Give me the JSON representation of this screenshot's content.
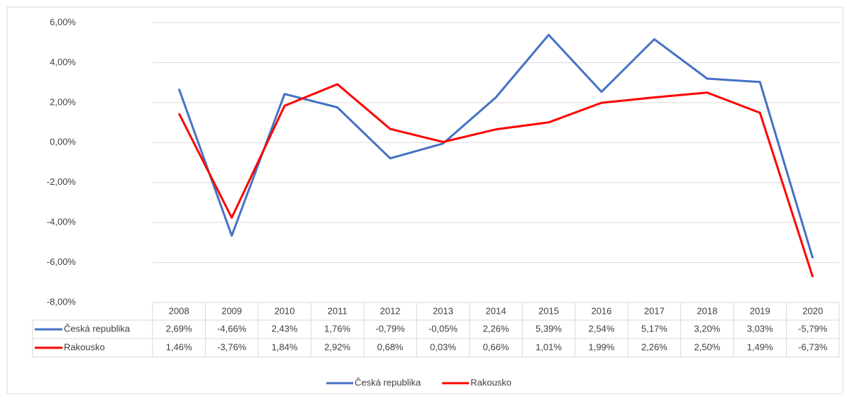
{
  "chart_data": {
    "type": "line",
    "categories": [
      "2008",
      "2009",
      "2010",
      "2011",
      "2012",
      "2013",
      "2014",
      "2015",
      "2016",
      "2017",
      "2018",
      "2019",
      "2020"
    ],
    "series": [
      {
        "name": "Česká republika",
        "color": "#4472c4",
        "values": [
          2.69,
          -4.66,
          2.43,
          1.76,
          -0.79,
          -0.05,
          2.26,
          5.39,
          2.54,
          5.17,
          3.2,
          3.03,
          -5.79
        ],
        "value_labels": [
          "2,69%",
          "-4,66%",
          "2,43%",
          "1,76%",
          "-0,79%",
          "-0,05%",
          "2,26%",
          "5,39%",
          "2,54%",
          "5,17%",
          "3,20%",
          "3,03%",
          "-5,79%"
        ]
      },
      {
        "name": "Rakousko",
        "color": "#ff0000",
        "values": [
          1.46,
          -3.76,
          1.84,
          2.92,
          0.68,
          0.03,
          0.66,
          1.01,
          1.99,
          2.26,
          2.5,
          1.49,
          -6.73
        ],
        "value_labels": [
          "1,46%",
          "-3,76%",
          "1,84%",
          "2,92%",
          "0,68%",
          "0,03%",
          "0,66%",
          "1,01%",
          "1,99%",
          "2,26%",
          "2,50%",
          "1,49%",
          "-6,73%"
        ]
      }
    ],
    "ylim": [
      -8,
      6
    ],
    "yticks": [
      {
        "value": 6,
        "label": "6,00%"
      },
      {
        "value": 4,
        "label": "4,00%"
      },
      {
        "value": 2,
        "label": "2,00%"
      },
      {
        "value": 0,
        "label": "0,00%"
      },
      {
        "value": -2,
        "label": "-2,00%"
      },
      {
        "value": -4,
        "label": "-4,00%"
      },
      {
        "value": -6,
        "label": "-6,00%"
      },
      {
        "value": -8,
        "label": "-8,00%"
      }
    ],
    "grid": true,
    "legend": "bottom"
  }
}
